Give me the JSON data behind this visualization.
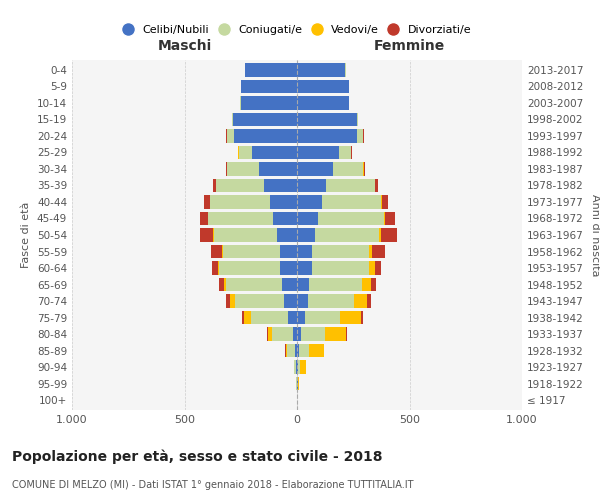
{
  "age_groups": [
    "100+",
    "95-99",
    "90-94",
    "85-89",
    "80-84",
    "75-79",
    "70-74",
    "65-69",
    "60-64",
    "55-59",
    "50-54",
    "45-49",
    "40-44",
    "35-39",
    "30-34",
    "25-29",
    "20-24",
    "15-19",
    "10-14",
    "5-9",
    "0-4"
  ],
  "birth_years": [
    "≤ 1917",
    "1918-1922",
    "1923-1927",
    "1928-1932",
    "1933-1937",
    "1938-1942",
    "1943-1947",
    "1948-1952",
    "1953-1957",
    "1958-1962",
    "1963-1967",
    "1968-1972",
    "1973-1977",
    "1978-1982",
    "1983-1987",
    "1988-1992",
    "1993-1997",
    "1998-2002",
    "2003-2007",
    "2008-2012",
    "2013-2017"
  ],
  "male": {
    "celibi": [
      2,
      2,
      4,
      8,
      20,
      40,
      60,
      65,
      75,
      75,
      90,
      105,
      120,
      145,
      170,
      200,
      280,
      285,
      250,
      250,
      230
    ],
    "coniugati": [
      0,
      2,
      8,
      35,
      90,
      165,
      215,
      250,
      270,
      255,
      280,
      290,
      265,
      215,
      140,
      60,
      30,
      5,
      2,
      1,
      1
    ],
    "vedovi": [
      0,
      0,
      2,
      8,
      20,
      30,
      25,
      10,
      5,
      3,
      2,
      2,
      2,
      2,
      2,
      2,
      2,
      0,
      0,
      0,
      0
    ],
    "divorziati": [
      0,
      0,
      0,
      2,
      5,
      8,
      15,
      20,
      30,
      50,
      60,
      35,
      25,
      10,
      5,
      2,
      2,
      0,
      0,
      0,
      0
    ]
  },
  "female": {
    "nubili": [
      2,
      3,
      5,
      10,
      18,
      35,
      48,
      55,
      65,
      65,
      80,
      95,
      110,
      130,
      160,
      185,
      265,
      265,
      230,
      230,
      215
    ],
    "coniugate": [
      0,
      2,
      10,
      45,
      105,
      155,
      205,
      235,
      255,
      255,
      285,
      290,
      265,
      215,
      135,
      55,
      28,
      5,
      2,
      1,
      1
    ],
    "vedove": [
      0,
      5,
      25,
      65,
      95,
      95,
      60,
      40,
      25,
      15,
      10,
      5,
      3,
      2,
      2,
      2,
      2,
      0,
      0,
      0,
      0
    ],
    "divorziate": [
      0,
      0,
      0,
      2,
      5,
      10,
      15,
      20,
      30,
      55,
      70,
      45,
      25,
      15,
      5,
      2,
      2,
      0,
      0,
      0,
      0
    ]
  },
  "colors": {
    "celibi": "#4472c4",
    "coniugati": "#c5d9a0",
    "vedovi": "#ffc000",
    "divorziati": "#c0392b"
  },
  "title": "Popolazione per età, sesso e stato civile - 2018",
  "subtitle": "COMUNE DI MELZO (MI) - Dati ISTAT 1° gennaio 2018 - Elaborazione TUTTITALIA.IT",
  "xlabel_left": "Maschi",
  "xlabel_right": "Femmine",
  "ylabel_left": "Fasce di età",
  "ylabel_right": "Anni di nascita",
  "xlim": 1000,
  "bg_color": "#ffffff",
  "grid_color": "#cccccc"
}
